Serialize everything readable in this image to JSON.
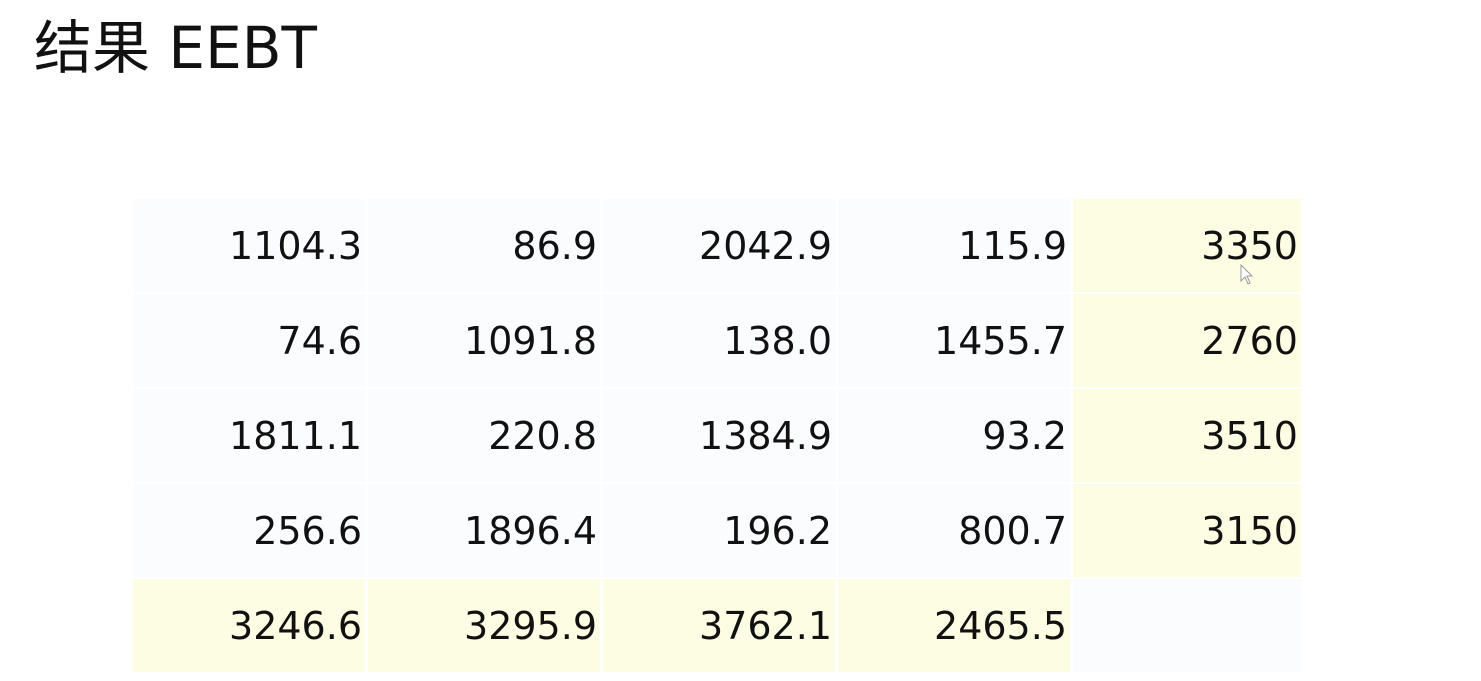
{
  "title": "结果 EEBT",
  "table": {
    "rows": [
      [
        "1104.3",
        "86.9",
        "2042.9",
        "115.9",
        "3350"
      ],
      [
        "74.6",
        "1091.8",
        "138.0",
        "1455.7",
        "2760"
      ],
      [
        "1811.1",
        "220.8",
        "1384.9",
        "93.2",
        "3510"
      ],
      [
        "256.6",
        "1896.4",
        "196.2",
        "800.7",
        "3150"
      ],
      [
        "3246.6",
        "3295.9",
        "3762.1",
        "2465.5",
        ""
      ]
    ]
  },
  "colors": {
    "highlight": "#fdfde3",
    "plain": "#fafcfe",
    "text": "#111111"
  },
  "icons": {
    "cursor": "mouse-pointer-icon"
  }
}
